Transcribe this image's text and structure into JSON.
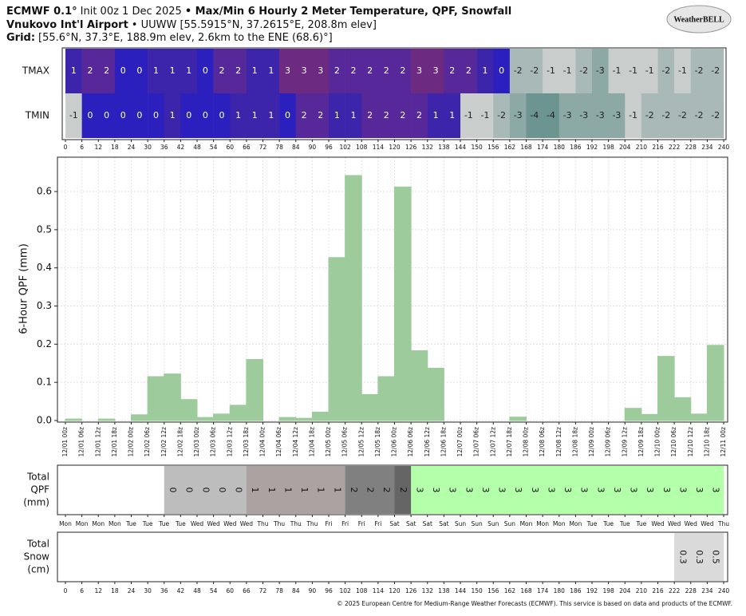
{
  "header": {
    "model": "ECMWF 0.1°",
    "init": "Init 00z 1 Dec 2025",
    "product": "• Max/Min 6 Hourly 2 Meter Temperature, QPF, Snowfall",
    "station": "Vnukovo Int'l Airport",
    "station_info": "• UUWW [55.5915°N, 37.2615°E, 208.8m elev]",
    "grid_label": "Grid:",
    "grid_info": "[55.6°N, 37.3°E, 188.9m elev, 2.6km to the ENE (68.6)°]"
  },
  "logo": "WeatherBELL",
  "footer": "© 2025 European Centre for Medium-Range Weather Forecasts (ECMWF). This service is based on data and products of the ECMWF.",
  "chart_data": [
    {
      "type": "heatmap",
      "series": [
        {
          "name": "TMAX",
          "values": [
            1,
            2,
            2,
            0,
            0,
            1,
            1,
            1,
            0,
            2,
            2,
            1,
            1,
            3,
            3,
            3,
            2,
            2,
            2,
            2,
            2,
            3,
            3,
            2,
            2,
            1,
            0,
            -2,
            -2,
            -1,
            -1,
            -2,
            -3,
            -1,
            -1,
            -1,
            -2,
            -1,
            -2,
            -2
          ]
        },
        {
          "name": "TMIN",
          "values": [
            -1,
            0,
            0,
            0,
            0,
            0,
            1,
            0,
            0,
            0,
            1,
            1,
            1,
            0,
            2,
            2,
            1,
            1,
            2,
            2,
            2,
            2,
            1,
            1,
            -1,
            -1,
            -2,
            -3,
            -4,
            -4,
            -3,
            -3,
            -3,
            -3,
            -1,
            -2,
            -2,
            -2,
            -2,
            -2
          ]
        }
      ],
      "colors": {
        "3": "#6c2a80",
        "2": "#56289a",
        "1": "#3c24ab",
        "0": "#2b20bd",
        "-1": "#c9cdcc",
        "-2": "#a9b9b7",
        "-3": "#8ca9a6",
        "-4": "#6c9591"
      },
      "xlim": [
        0,
        240
      ],
      "xticks": [
        0,
        6,
        12,
        18,
        24,
        30,
        36,
        42,
        48,
        54,
        60,
        66,
        72,
        78,
        84,
        90,
        96,
        102,
        108,
        114,
        120,
        126,
        132,
        138,
        144,
        150,
        156,
        162,
        168,
        174,
        180,
        186,
        192,
        198,
        204,
        210,
        216,
        222,
        228,
        234,
        240
      ]
    },
    {
      "type": "bar",
      "ylabel": "6-Hour QPF (mm)",
      "color": "#9ecb9b",
      "grid": true,
      "values": [
        0.004,
        0,
        0.004,
        0,
        0.015,
        0.115,
        0.122,
        0.055,
        0.008,
        0.017,
        0.04,
        0.16,
        0,
        0.008,
        0.006,
        0.022,
        0.427,
        0.642,
        0.068,
        0.115,
        0.612,
        0.183,
        0.137,
        0,
        0,
        0,
        0,
        0.009,
        0,
        0,
        0,
        0,
        0,
        0,
        0.032,
        0.016,
        0.168,
        0.06,
        0.017,
        0.197
      ],
      "xtick_labels": [
        "12/01 00z",
        "12/01 06z",
        "12/01 12z",
        "12/01 18z",
        "12/02 00z",
        "12/02 06z",
        "12/02 12z",
        "12/02 18z",
        "12/03 00z",
        "12/03 06z",
        "12/03 12z",
        "12/03 18z",
        "12/04 00z",
        "12/04 06z",
        "12/04 12z",
        "12/04 18z",
        "12/05 00z",
        "12/05 06z",
        "12/05 12z",
        "12/05 18z",
        "12/06 00z",
        "12/06 06z",
        "12/06 12z",
        "12/06 18z",
        "12/07 00z",
        "12/07 06z",
        "12/07 12z",
        "12/07 18z",
        "12/08 00z",
        "12/08 06z",
        "12/08 12z",
        "12/08 18z",
        "12/09 00z",
        "12/09 06z",
        "12/09 12z",
        "12/09 18z",
        "12/10 00z",
        "12/10 06z",
        "12/10 12z",
        "12/10 18z",
        "12/11 00z"
      ],
      "ylim": [
        0,
        0.69
      ],
      "yticks": [
        {
          "value": 0,
          "label": "0.0"
        },
        0.1,
        0.2,
        0.3,
        0.4,
        0.5,
        0.6
      ]
    },
    {
      "type": "strip",
      "ylabel": [
        "Total",
        "QPF",
        "(mm)"
      ],
      "values": [
        null,
        null,
        null,
        null,
        null,
        null,
        0,
        0,
        0,
        0,
        0,
        1,
        1,
        1,
        1,
        1,
        1,
        2,
        2,
        2,
        2,
        3,
        3,
        3,
        3,
        3,
        3,
        3,
        3,
        3,
        3,
        3,
        3,
        3,
        3,
        3,
        3,
        3,
        3,
        3
      ],
      "colors": [
        null,
        null,
        null,
        null,
        null,
        null,
        "#bdbdbd",
        "#bdbdbd",
        "#bdbdbd",
        "#bdbdbd",
        "#bdbdbd",
        "#aba2a1",
        "#aba2a1",
        "#aba2a1",
        "#aba2a1",
        "#aba2a1",
        "#aba2a1",
        "#808080",
        "#808080",
        "#808080",
        "#656565",
        "#b3ffaa",
        "#b3ffaa",
        "#b3ffaa",
        "#b3ffaa",
        "#b3ffaa",
        "#b3ffaa",
        "#b3ffaa",
        "#b3ffaa",
        "#b3ffaa",
        "#b3ffaa",
        "#b3ffaa",
        "#b3ffaa",
        "#b3ffaa",
        "#b3ffaa",
        "#b3ffaa",
        "#b3ffaa",
        "#b3ffaa",
        "#b3ffaa",
        "#b3ffaa"
      ],
      "xtick_labels": [
        "Mon",
        "Mon",
        "Mon",
        "Mon",
        "Tue",
        "Tue",
        "Tue",
        "Tue",
        "Wed",
        "Wed",
        "Wed",
        "Wed",
        "Thu",
        "Thu",
        "Thu",
        "Thu",
        "Fri",
        "Fri",
        "Fri",
        "Fri",
        "Sat",
        "Sat",
        "Sat",
        "Sat",
        "Sun",
        "Sun",
        "Sun",
        "Sun",
        "Mon",
        "Mon",
        "Mon",
        "Mon",
        "Tue",
        "Tue",
        "Tue",
        "Tue",
        "Wed",
        "Wed",
        "Wed",
        "Wed",
        "Thu"
      ]
    },
    {
      "type": "strip",
      "ylabel": [
        "Total",
        "Snow",
        "(cm)"
      ],
      "color": "#dadada",
      "values": [
        null,
        null,
        null,
        null,
        null,
        null,
        null,
        null,
        null,
        null,
        null,
        null,
        null,
        null,
        null,
        null,
        null,
        null,
        null,
        null,
        null,
        null,
        null,
        null,
        null,
        null,
        null,
        null,
        null,
        null,
        null,
        null,
        null,
        null,
        null,
        null,
        null,
        0.3,
        0.3,
        0.5
      ],
      "xlim": [
        0,
        240
      ],
      "xticks": [
        0,
        6,
        12,
        18,
        24,
        30,
        36,
        42,
        48,
        54,
        60,
        66,
        72,
        78,
        84,
        90,
        96,
        102,
        108,
        114,
        120,
        126,
        132,
        138,
        144,
        150,
        156,
        162,
        168,
        174,
        180,
        186,
        192,
        198,
        204,
        210,
        216,
        222,
        228,
        234,
        240
      ]
    }
  ]
}
